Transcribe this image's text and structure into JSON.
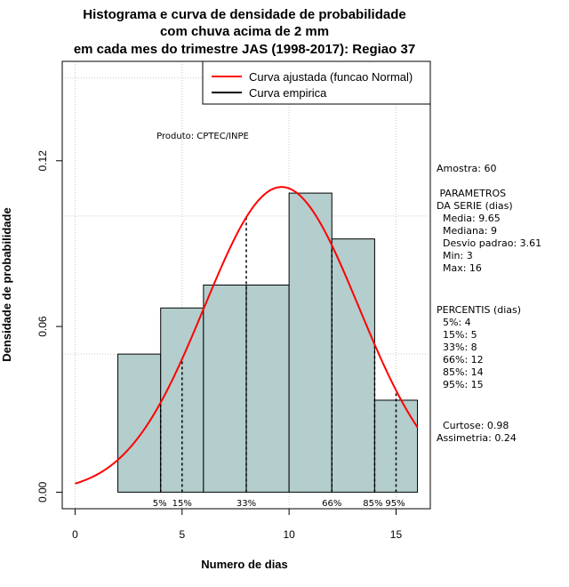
{
  "chart_data": {
    "type": "histogram",
    "title_lines": [
      "Histograma e curva de densidade de probabilidade",
      "com chuva acima de 2 mm",
      "em cada mes do trimestre JAS (1998-2017): Regiao 37"
    ],
    "xlabel": "Numero de dias",
    "ylabel": "Densidade de probabilidade",
    "xlim": [
      -0.6,
      16.6
    ],
    "ylim": [
      -0.006,
      0.156
    ],
    "x_ticks": [
      0,
      5,
      10,
      15
    ],
    "x_tick_labels": [
      "0",
      "5",
      "10",
      "15"
    ],
    "y_ticks": [
      0.0,
      0.06,
      0.12
    ],
    "y_tick_labels": [
      "0.00",
      "0.06",
      "0.12"
    ],
    "x_grid": [
      0,
      5,
      10,
      15
    ],
    "y_grid": [
      0.05,
      0.1,
      0.15
    ],
    "bins": [
      {
        "x0": 2,
        "x1": 4,
        "density": 0.05
      },
      {
        "x0": 4,
        "x1": 6,
        "density": 0.0667
      },
      {
        "x0": 6,
        "x1": 8,
        "density": 0.075
      },
      {
        "x0": 8,
        "x1": 10,
        "density": 0.075
      },
      {
        "x0": 10,
        "x1": 12,
        "density": 0.1083
      },
      {
        "x0": 12,
        "x1": 14,
        "density": 0.0917
      },
      {
        "x0": 14,
        "x1": 16,
        "density": 0.0333
      }
    ],
    "bar_color": "#b4cdcd",
    "curve": {
      "name": "Curva ajustada (funcao Normal)",
      "mean": 9.65,
      "sd": 3.61,
      "x_from": 0,
      "x_to": 16,
      "color": "#ff0000"
    },
    "empirical_legend": {
      "name": "Curva empirica",
      "color": "#000000"
    },
    "percentile_markers": [
      {
        "label": "5%",
        "x": 4
      },
      {
        "label": "15%",
        "x": 5
      },
      {
        "label": "33%",
        "x": 8
      },
      {
        "label": "66%",
        "x": 12
      },
      {
        "label": "85%",
        "x": 14
      },
      {
        "label": "95%",
        "x": 15
      }
    ],
    "annotation": "Produto: CPTEC/INPE"
  },
  "side_panel": {
    "amostra": "Amostra: 60",
    "params_title_1": " PARAMETROS",
    "params_title_2": "DA SERIE (dias)",
    "media": "  Media: 9.65",
    "mediana": "  Mediana: 9",
    "desvio": "  Desvio padrao: 3.61",
    "min": "  Min: 3",
    "max": "  Max: 16",
    "percentis_title": "PERCENTIS (dias)",
    "p5": "  5%: 4",
    "p15": "  15%: 5",
    "p33": "  33%: 8",
    "p66": "  66%: 12",
    "p85": "  85%: 14",
    "p95": "  95%: 15",
    "curtose": "  Curtose: 0.98",
    "assimetria": "Assimetria: 0.24"
  }
}
